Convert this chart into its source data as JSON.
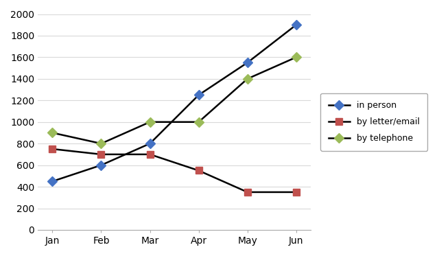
{
  "months": [
    "Jan",
    "Feb",
    "Mar",
    "Apr",
    "May",
    "Jun"
  ],
  "in_person": [
    450,
    600,
    800,
    1250,
    1550,
    1900
  ],
  "by_letter_email": [
    750,
    700,
    700,
    550,
    350,
    350
  ],
  "by_telephone": [
    900,
    800,
    1000,
    1000,
    1400,
    1600
  ],
  "line_color": "#000000",
  "in_person_marker_color": "#4472C4",
  "letter_marker_color": "#C0504D",
  "telephone_marker_color": "#9BBB59",
  "ylim": [
    0,
    2000
  ],
  "yticks": [
    0,
    200,
    400,
    600,
    800,
    1000,
    1200,
    1400,
    1600,
    1800,
    2000
  ],
  "legend_labels": [
    "in person",
    "by letter/email",
    "by telephone"
  ],
  "background_color": "#FFFFFF",
  "grid_color": "#D9D9D9",
  "figsize": [
    6.4,
    3.73
  ],
  "dpi": 100
}
